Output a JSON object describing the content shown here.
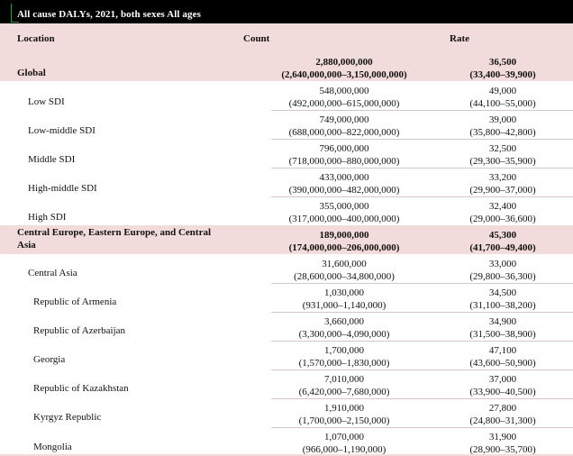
{
  "title": "All cause DALYs, 2021, both sexes All ages",
  "columns": {
    "location": "Location",
    "count": "Count",
    "rate": "Rate"
  },
  "rows": [
    {
      "location": "Global",
      "count": "2,880,000,000",
      "count_ui": "(2,640,000,000–3,150,000,000)",
      "rate": "36,500",
      "rate_ui": "(33,400–39,900)"
    },
    {
      "location": "Low SDI",
      "count": "548,000,000",
      "count_ui": "(492,000,000–615,000,000)",
      "rate": "49,000",
      "rate_ui": "(44,100–55,000)"
    },
    {
      "location": "Low-middle SDI",
      "count": "749,000,000",
      "count_ui": "(688,000,000–822,000,000)",
      "rate": "39,000",
      "rate_ui": "(35,800–42,800)"
    },
    {
      "location": "Middle SDI",
      "count": "796,000,000",
      "count_ui": "(718,000,000–880,000,000)",
      "rate": "32,500",
      "rate_ui": "(29,300–35,900)"
    },
    {
      "location": "High-middle SDI",
      "count": "433,000,000",
      "count_ui": "(390,000,000–482,000,000)",
      "rate": "33,200",
      "rate_ui": "(29,900–37,000)"
    },
    {
      "location": "High SDI",
      "count": "355,000,000",
      "count_ui": "(317,000,000–400,000,000)",
      "rate": "32,400",
      "rate_ui": "(29,000–36,600)"
    },
    {
      "location": "Central Europe, Eastern Europe, and Central",
      "location_2": "Asia",
      "count": "189,000,000",
      "count_ui": "(174,000,000–206,000,000)",
      "rate": "45,300",
      "rate_ui": "(41,700–49,400)"
    },
    {
      "location": "Central Asia",
      "count": "31,600,000",
      "count_ui": "(28,600,000–34,800,000)",
      "rate": "33,000",
      "rate_ui": "(29,800–36,300)"
    },
    {
      "location": "Republic of Armenia",
      "count": "1,030,000",
      "count_ui": "(931,000–1,140,000)",
      "rate": "34,500",
      "rate_ui": "(31,100–38,200)"
    },
    {
      "location": "Republic of Azerbaijan",
      "count": "3,660,000",
      "count_ui": "(3,300,000–4,090,000)",
      "rate": "34,900",
      "rate_ui": "(31,500–38,900)"
    },
    {
      "location": "Georgia",
      "count": "1,700,000",
      "count_ui": "(1,570,000–1,830,000)",
      "rate": "47,100",
      "rate_ui": "(43,600–50,900)"
    },
    {
      "location": "Republic of Kazakhstan",
      "count": "7,010,000",
      "count_ui": "(6,420,000–7,680,000)",
      "rate": "37,000",
      "rate_ui": "(33,900–40,500)"
    },
    {
      "location": "Kyrgyz Republic",
      "count": "1,910,000",
      "count_ui": "(1,700,000–2,150,000)",
      "rate": "27,800",
      "rate_ui": "(24,800–31,300)"
    },
    {
      "location": "Mongolia",
      "count": "1,070,000",
      "count_ui": "(966,000–1,190,000)",
      "rate": "31,900",
      "rate_ui": "(28,900–35,700)"
    }
  ]
}
